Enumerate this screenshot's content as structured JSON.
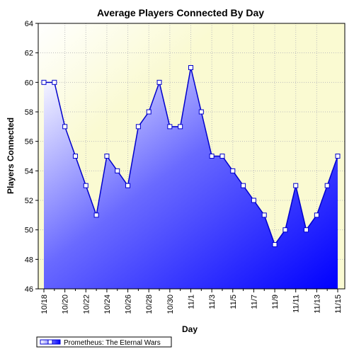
{
  "chart_data": {
    "type": "area",
    "title": "Average Players Connected By Day",
    "xlabel": "Day",
    "ylabel": "Players Connected",
    "ylim": [
      46,
      64
    ],
    "y_ticks": [
      46,
      48,
      50,
      52,
      54,
      56,
      58,
      60,
      62,
      64
    ],
    "x_tick_labels": [
      "10/18",
      "10/20",
      "10/22",
      "10/24",
      "10/26",
      "10/28",
      "10/30",
      "11/1",
      "11/3",
      "11/5",
      "11/7",
      "11/9",
      "11/11",
      "11/13",
      "11/15"
    ],
    "x": [
      "10/18",
      "10/19",
      "10/20",
      "10/21",
      "10/22",
      "10/23",
      "10/24",
      "10/25",
      "10/26",
      "10/27",
      "10/28",
      "10/29",
      "10/30",
      "10/31",
      "11/1",
      "11/2",
      "11/3",
      "11/4",
      "11/5",
      "11/6",
      "11/7",
      "11/8",
      "11/9",
      "11/10",
      "11/11",
      "11/12",
      "11/13",
      "11/14",
      "11/15"
    ],
    "series": [
      {
        "name": "Prometheus: The Eternal Wars",
        "values": [
          60,
          60,
          57,
          55,
          53,
          51,
          55,
          54,
          53,
          57,
          58,
          60,
          57,
          57,
          61,
          58,
          55,
          55,
          54,
          53,
          52,
          51,
          49,
          50,
          53,
          50,
          51,
          53,
          55
        ]
      }
    ],
    "grid": true,
    "legend_position": "bottom-left",
    "colors": {
      "line": "#0000cc",
      "fill_start": "#ffffff",
      "fill_end": "#0000ff",
      "plot_bg_top": "#fafad2",
      "marker_fill": "#ffffff"
    }
  }
}
